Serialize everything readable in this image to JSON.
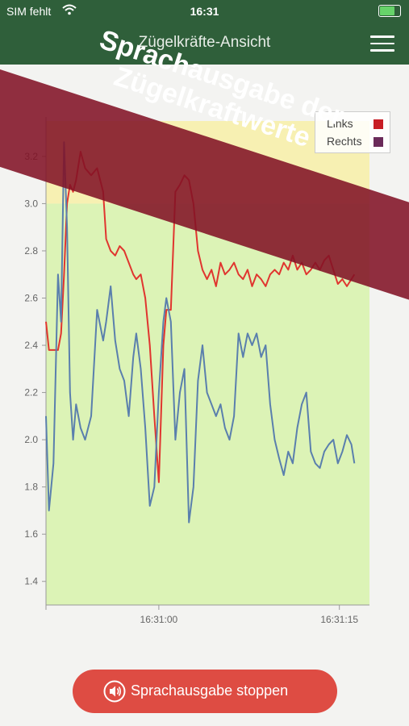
{
  "status": {
    "carrier": "SIM fehlt",
    "time": "16:31"
  },
  "nav": {
    "title": "Zügelkräfte-Ansicht",
    "menu_icon": "hamburger-menu-icon"
  },
  "banner": {
    "line1": "Sprachausgabe der",
    "line2": "Zügelkraftwerte"
  },
  "colors": {
    "nav_bg": "#2f5f3a",
    "red": "#e0352f",
    "blue": "#5a7fad",
    "band_yellow": "#f7f0b2",
    "band_green": "#dcf3b6",
    "button": "#de4c43"
  },
  "legend": {
    "left": "Links",
    "right": "Rechts"
  },
  "button": {
    "label": "Sprachausgabe stoppen",
    "icon": "speaker-icon"
  },
  "chart_data": {
    "type": "line",
    "ylim": [
      1.3,
      3.35
    ],
    "xlim": [
      0,
      21.5
    ],
    "yticks": [
      "3.2",
      "3.0",
      "2.8",
      "2.6",
      "2.4",
      "2.2",
      "2.0",
      "1.8",
      "1.6",
      "1.4"
    ],
    "xticks": [
      "16:31:00",
      "16:31:15"
    ],
    "bands": [
      {
        "from": 3.0,
        "to": 3.35,
        "color": "#f7f0b2"
      },
      {
        "from": 1.3,
        "to": 3.0,
        "color": "#dcf3b6"
      }
    ],
    "series": [
      {
        "name": "Links",
        "color": "#e0352f",
        "x": [
          0,
          0.2,
          0.5,
          0.8,
          1.0,
          1.2,
          1.4,
          1.6,
          1.8,
          2.0,
          2.3,
          2.6,
          3.0,
          3.4,
          3.8,
          4.0,
          4.3,
          4.6,
          4.9,
          5.2,
          5.5,
          5.8,
          6.0,
          6.3,
          6.6,
          6.9,
          7.2,
          7.5,
          7.8,
          8.0,
          8.3,
          8.6,
          8.9,
          9.2,
          9.5,
          9.8,
          10.1,
          10.4,
          10.7,
          11.0,
          11.3,
          11.6,
          11.9,
          12.2,
          12.5,
          12.8,
          13.1,
          13.4,
          13.7,
          14.0,
          14.3,
          14.6,
          14.9,
          15.2,
          15.5,
          15.8,
          16.1,
          16.4,
          16.7,
          17.0,
          17.3,
          17.6,
          17.9,
          18.2,
          18.5,
          18.8,
          19.1,
          19.4,
          19.7,
          20.0,
          20.3,
          20.5
        ],
        "y": [
          2.5,
          2.38,
          2.38,
          2.38,
          2.45,
          2.7,
          3.0,
          3.08,
          3.05,
          3.1,
          3.22,
          3.15,
          3.12,
          3.15,
          3.05,
          2.85,
          2.8,
          2.78,
          2.82,
          2.8,
          2.75,
          2.7,
          2.68,
          2.7,
          2.6,
          2.4,
          2.1,
          1.82,
          2.4,
          2.55,
          2.55,
          3.05,
          3.08,
          3.12,
          3.1,
          3.0,
          2.8,
          2.72,
          2.68,
          2.72,
          2.65,
          2.75,
          2.7,
          2.72,
          2.75,
          2.7,
          2.68,
          2.72,
          2.65,
          2.7,
          2.68,
          2.65,
          2.7,
          2.72,
          2.7,
          2.75,
          2.72,
          2.78,
          2.72,
          2.75,
          2.7,
          2.72,
          2.75,
          2.72,
          2.76,
          2.78,
          2.72,
          2.66,
          2.68,
          2.65,
          2.68,
          2.7
        ]
      },
      {
        "name": "Rechts",
        "color": "#5a7fad",
        "x": [
          0,
          0.2,
          0.5,
          0.8,
          1.0,
          1.2,
          1.4,
          1.6,
          1.8,
          2.0,
          2.3,
          2.6,
          3.0,
          3.4,
          3.8,
          4.0,
          4.3,
          4.6,
          4.9,
          5.2,
          5.5,
          5.8,
          6.0,
          6.3,
          6.6,
          6.9,
          7.2,
          7.5,
          7.8,
          8.0,
          8.3,
          8.6,
          8.9,
          9.2,
          9.5,
          9.8,
          10.1,
          10.4,
          10.7,
          11.0,
          11.3,
          11.6,
          11.9,
          12.2,
          12.5,
          12.8,
          13.1,
          13.4,
          13.7,
          14.0,
          14.3,
          14.6,
          14.9,
          15.2,
          15.5,
          15.8,
          16.1,
          16.4,
          16.7,
          17.0,
          17.3,
          17.6,
          17.9,
          18.2,
          18.5,
          18.8,
          19.1,
          19.4,
          19.7,
          20.0,
          20.3,
          20.5
        ],
        "y": [
          2.1,
          1.7,
          1.9,
          2.7,
          2.5,
          3.26,
          2.9,
          2.2,
          2.0,
          2.15,
          2.05,
          2.0,
          2.1,
          2.55,
          2.42,
          2.5,
          2.65,
          2.42,
          2.3,
          2.25,
          2.1,
          2.35,
          2.45,
          2.3,
          2.05,
          1.72,
          1.8,
          2.2,
          2.5,
          2.6,
          2.5,
          2.0,
          2.2,
          2.3,
          1.65,
          1.8,
          2.25,
          2.4,
          2.2,
          2.15,
          2.1,
          2.15,
          2.05,
          2.0,
          2.1,
          2.45,
          2.35,
          2.45,
          2.4,
          2.45,
          2.35,
          2.4,
          2.15,
          2.0,
          1.92,
          1.85,
          1.95,
          1.9,
          2.05,
          2.15,
          2.2,
          1.95,
          1.9,
          1.88,
          1.95,
          1.98,
          2.0,
          1.9,
          1.95,
          2.02,
          1.98,
          1.9
        ]
      }
    ]
  }
}
